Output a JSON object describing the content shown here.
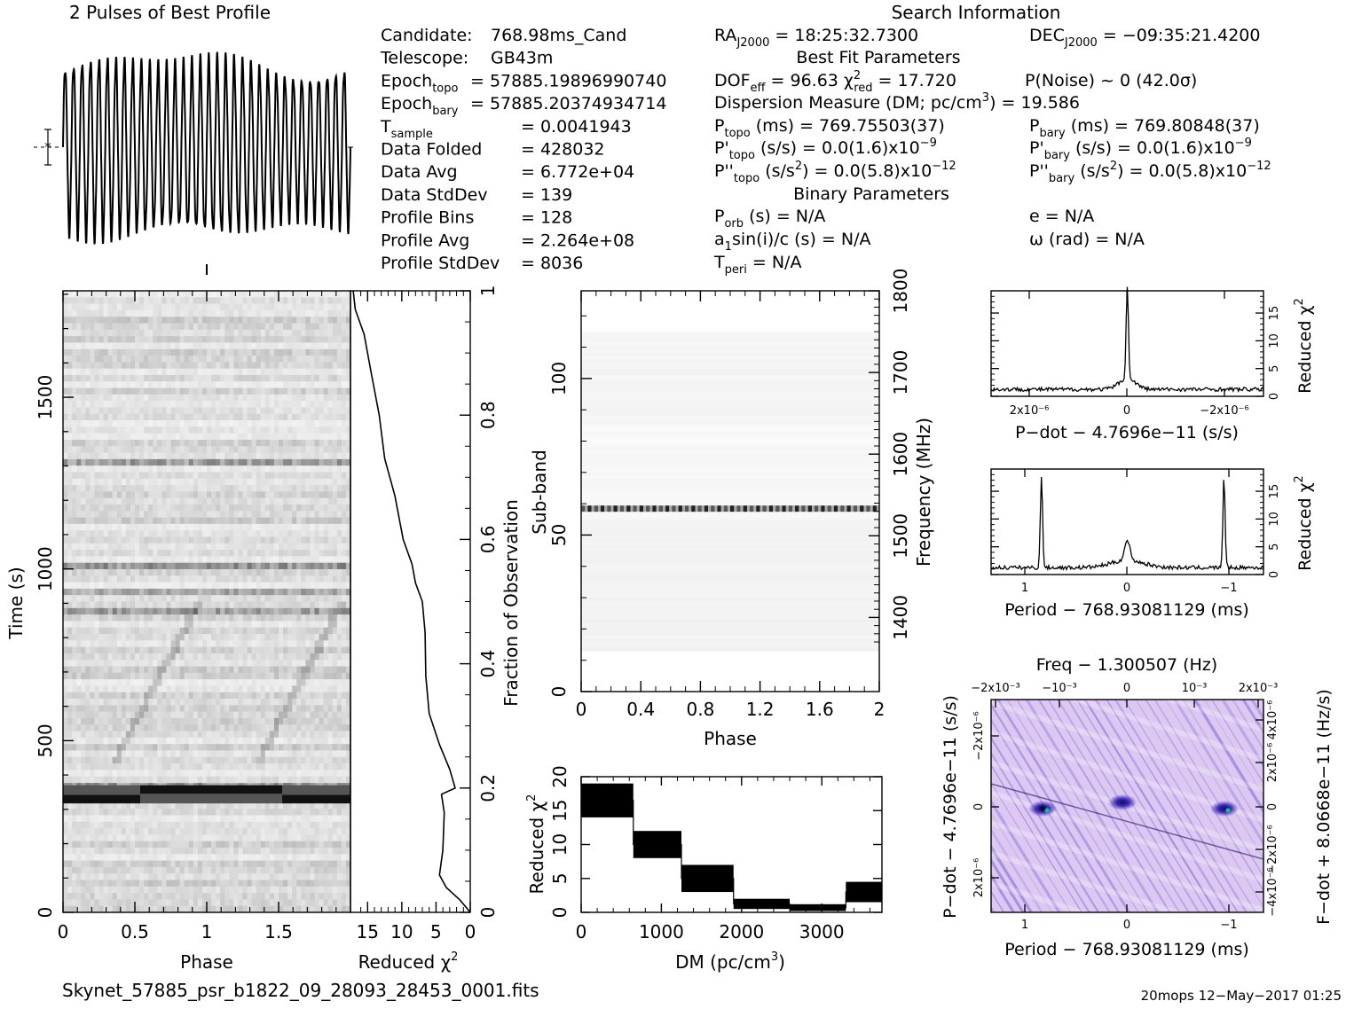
{
  "header": {
    "profile_title": "2 Pulses of Best Profile",
    "search_title": "Search Information",
    "best_fit_title": "Best Fit Parameters",
    "binary_title": "Binary Parameters"
  },
  "obs_info": [
    {
      "label": "Candidate:",
      "value": "768.98ms_Cand"
    },
    {
      "label": "Telescope:",
      "value": "GB43m"
    },
    {
      "label": "Epoch_topo",
      "value": "= 57885.19896990740"
    },
    {
      "label": "Epoch_bary",
      "value": "= 57885.20374934714"
    },
    {
      "label": "T_sample",
      "value": "=   0.0041943"
    },
    {
      "label": "Data Folded",
      "value": "=   428032"
    },
    {
      "label": "Data Avg",
      "value": "=   6.772e+04"
    },
    {
      "label": "Data StdDev",
      "value": "=   139"
    },
    {
      "label": "Profile Bins",
      "value": "=   128"
    },
    {
      "label": "Profile Avg",
      "value": "=   2.264e+08"
    },
    {
      "label": "Profile StdDev",
      "value": "=   8036"
    }
  ],
  "search_info": {
    "ra": "RA_J2000 = 18:25:32.7300",
    "dec": "DEC_J2000 = −09:35:21.4200",
    "dof": "DOF_eff = 96.63   χ²_red = 17.720",
    "pnoise": "P(Noise) ~ 0    (42.0σ)",
    "dm": "Dispersion Measure (DM; pc/cm³) = 19.586",
    "p_topo": "P_topo (ms) =   769.75503(37)",
    "p_bary": "P_bary (ms) =   769.80848(37)",
    "pd_topo": "P'_topo (s/s) = 0.0(1.6)x10⁻⁹",
    "pd_bary": "P'_bary (s/s) = 0.0(1.6)x10⁻⁹",
    "pdd_topo": "P''_topo (s/s²) = 0.0(5.8)x10⁻¹²",
    "pdd_bary": "P''_bary (s/s²) = 0.0(5.8)x10⁻¹²",
    "porb": "P_orb (s) = N/A",
    "ecc": "e = N/A",
    "a1sini": "a₁sin(i)/c (s) = N/A",
    "omega": "ω (rad) = N/A",
    "tperi": "T_peri = N/A"
  },
  "footer": {
    "filename": "Skynet_57885_psr_b1822_09_28093_28453_0001.fits",
    "stamp": "20mops 12−May−2017 01:25"
  },
  "chart_data": [
    {
      "id": "profile",
      "type": "line",
      "title": "2 Pulses of Best Profile",
      "x_range": [
        0,
        2
      ],
      "cycles": 34,
      "note": "sinusoid-like profile, error bar marker on left"
    },
    {
      "id": "time_phase",
      "type": "heatmap",
      "xlabel": "Phase",
      "ylabel": "Time (s)",
      "x_ticks": [
        "0",
        "0.5",
        "1",
        "1.5"
      ],
      "y_ticks": [
        "0",
        "500",
        "1000",
        "1500"
      ],
      "xlim": [
        0,
        2
      ],
      "ylim": [
        0,
        1810
      ],
      "strong_rows_time_s": [
        330,
        360,
        880,
        930,
        1010,
        1310
      ]
    },
    {
      "id": "reduced_chi2_vs_fraction",
      "type": "line",
      "xlabel": "Reduced χ²",
      "ylabel": "Fraction of Observation",
      "x_ticks": [
        "15",
        "10",
        "5",
        "0"
      ],
      "y_ticks": [
        "0",
        "0.2",
        "0.4",
        "0.6",
        "0.8",
        "1"
      ],
      "xlim": [
        17.5,
        0
      ],
      "ylim": [
        0,
        1
      ],
      "points": [
        [
          0,
          0
        ],
        [
          1.5,
          0.02
        ],
        [
          3.5,
          0.04
        ],
        [
          4.5,
          0.06
        ],
        [
          4.0,
          0.1
        ],
        [
          3.8,
          0.16
        ],
        [
          4.2,
          0.19
        ],
        [
          2.2,
          0.2
        ],
        [
          3.0,
          0.23
        ],
        [
          4.5,
          0.27
        ],
        [
          6.0,
          0.32
        ],
        [
          6.5,
          0.38
        ],
        [
          6.6,
          0.45
        ],
        [
          7.0,
          0.5
        ],
        [
          8.0,
          0.53
        ],
        [
          8.5,
          0.56
        ],
        [
          9.8,
          0.6
        ],
        [
          11.0,
          0.67
        ],
        [
          12.5,
          0.73
        ],
        [
          13.3,
          0.8
        ],
        [
          14.5,
          0.87
        ],
        [
          15.5,
          0.93
        ],
        [
          16.8,
          0.97
        ],
        [
          17.1,
          1.0
        ]
      ]
    },
    {
      "id": "subband_phase",
      "type": "heatmap",
      "xlabel": "Phase",
      "ylabel": "Sub-band",
      "y2label": "Frequency (MHz)",
      "x_ticks": [
        "0",
        "0.4",
        "0.8",
        "1.2",
        "1.6",
        "2"
      ],
      "y_ticks": [
        "0",
        "50",
        "100"
      ],
      "y2_ticks": [
        "1400",
        "1500",
        "1600",
        "1700",
        "1800"
      ],
      "xlim": [
        0,
        2
      ],
      "ylim": [
        0,
        128
      ],
      "strong_subband": 58
    },
    {
      "id": "dm_chi2",
      "type": "bar",
      "xlabel": "DM (pc/cm³)",
      "ylabel": "Reduced χ²",
      "x_ticks": [
        "0",
        "1000",
        "2000",
        "3000"
      ],
      "y_ticks": [
        "0",
        "5",
        "10",
        "15",
        "20"
      ],
      "xlim": [
        0,
        3750
      ],
      "ylim": [
        0,
        20
      ],
      "blocks": [
        {
          "x0": 0,
          "x1": 650,
          "lo": 14,
          "hi": 19
        },
        {
          "x0": 650,
          "x1": 1250,
          "lo": 8,
          "hi": 12
        },
        {
          "x0": 1250,
          "x1": 1900,
          "lo": 3,
          "hi": 7
        },
        {
          "x0": 1900,
          "x1": 2600,
          "lo": 0.5,
          "hi": 2
        },
        {
          "x0": 2600,
          "x1": 3300,
          "lo": 0.2,
          "hi": 1.2
        },
        {
          "x0": 3300,
          "x1": 3750,
          "lo": 1.5,
          "hi": 4.5
        }
      ]
    },
    {
      "id": "pdot_chi2",
      "type": "line",
      "xlabel": "P-dot − 4.7696e-11 (s/s)",
      "ylabel": "Reduced χ²",
      "x_ticks": [
        "2x10⁻⁶",
        "0",
        "−2x10⁻⁶"
      ],
      "y_ticks": [
        "0",
        "5",
        "10",
        "15"
      ],
      "ylim": [
        0,
        19
      ],
      "peak": {
        "x": 0,
        "y": 17.7
      }
    },
    {
      "id": "period_chi2",
      "type": "line",
      "xlabel": "Period − 768.93081129 (ms)",
      "ylabel": "Reduced χ²",
      "x_ticks": [
        "1",
        "0",
        "−1"
      ],
      "y_ticks": [
        "0",
        "5",
        "10",
        "15"
      ],
      "ylim": [
        0,
        19
      ],
      "peaks": [
        {
          "x": 0.85,
          "y": 17.7
        },
        {
          "x": 0.0,
          "y": 4.5
        },
        {
          "x": -0.85,
          "y": 17.7
        }
      ]
    },
    {
      "id": "period_pdot_map",
      "type": "heatmap",
      "title": "Freq − 1.300507 (Hz)",
      "xlabel": "Period − 768.93081129 (ms)",
      "ylabel": "P-dot − 4.7696e-11 (s/s)",
      "y2label": "F-dot + 8.0668e-11 (Hz/s)",
      "x_ticks": [
        "1",
        "0",
        "−1"
      ],
      "x2_ticks": [
        "−2x10⁻³",
        "−10⁻³",
        "0",
        "10⁻³",
        "2x10⁻³"
      ],
      "y_ticks": [
        "−2x10⁻⁶",
        "0",
        "2x10⁻⁶"
      ],
      "y2_ticks": [
        "4x10⁻⁶",
        "2x10⁻⁶",
        "0",
        "−2x10⁻⁶",
        "−4x10⁻⁶"
      ],
      "colors": {
        "background": "#dcc8f0",
        "ridge": "#6d5ad6",
        "peak": "#1e1470",
        "best": "#00c8a0"
      }
    }
  ]
}
